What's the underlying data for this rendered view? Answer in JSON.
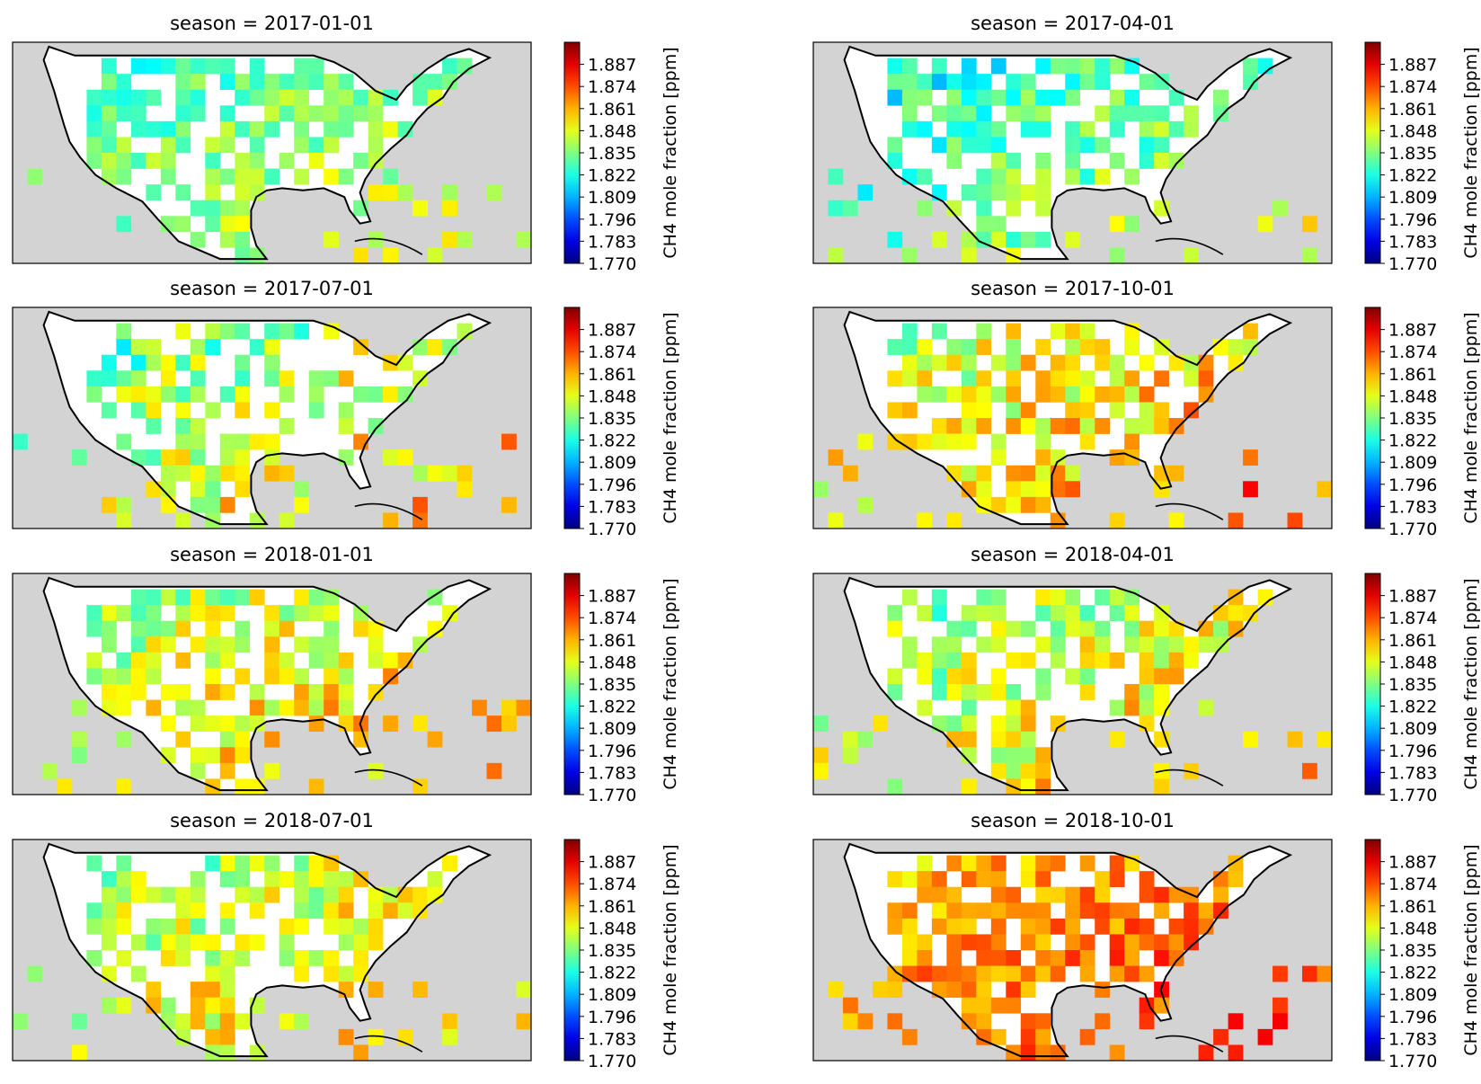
{
  "colors": {
    "ocean": "#d3d3d3",
    "land": "#ffffff",
    "coastline": "#000000",
    "colormap": "jet"
  },
  "chart_data": [
    {
      "type": "heatmap",
      "title": "season = 2017-01-01",
      "colorbar": {
        "label": "CH4 mole fraction [ppm]",
        "min": 1.77,
        "max": 1.9,
        "ticks": [
          "1.770",
          "1.783",
          "1.796",
          "1.809",
          "1.822",
          "1.835",
          "1.848",
          "1.861",
          "1.874",
          "1.887"
        ]
      },
      "values_summary": {
        "typical": 1.835,
        "min": 1.805,
        "max": 1.855
      }
    },
    {
      "type": "heatmap",
      "title": "season = 2017-04-01",
      "colorbar": {
        "label": "CH4 mole fraction [ppm]",
        "min": 1.77,
        "max": 1.9,
        "ticks": [
          "1.770",
          "1.783",
          "1.796",
          "1.809",
          "1.822",
          "1.835",
          "1.848",
          "1.861",
          "1.874",
          "1.887"
        ]
      },
      "values_summary": {
        "typical": 1.83,
        "min": 1.805,
        "max": 1.865
      }
    },
    {
      "type": "heatmap",
      "title": "season = 2017-07-01",
      "colorbar": {
        "label": "CH4 mole fraction [ppm]",
        "min": 1.77,
        "max": 1.9,
        "ticks": [
          "1.770",
          "1.783",
          "1.796",
          "1.809",
          "1.822",
          "1.835",
          "1.848",
          "1.861",
          "1.874",
          "1.887"
        ]
      },
      "values_summary": {
        "typical": 1.842,
        "min": 1.8,
        "max": 1.875
      }
    },
    {
      "type": "heatmap",
      "title": "season = 2017-10-01",
      "colorbar": {
        "label": "CH4 mole fraction [ppm]",
        "min": 1.77,
        "max": 1.9,
        "ticks": [
          "1.770",
          "1.783",
          "1.796",
          "1.809",
          "1.822",
          "1.835",
          "1.848",
          "1.861",
          "1.874",
          "1.887"
        ]
      },
      "values_summary": {
        "typical": 1.852,
        "min": 1.812,
        "max": 1.885
      }
    },
    {
      "type": "heatmap",
      "title": "season = 2018-01-01",
      "colorbar": {
        "label": "CH4 mole fraction [ppm]",
        "min": 1.77,
        "max": 1.9,
        "ticks": [
          "1.770",
          "1.783",
          "1.796",
          "1.809",
          "1.822",
          "1.835",
          "1.848",
          "1.861",
          "1.874",
          "1.887"
        ]
      },
      "values_summary": {
        "typical": 1.848,
        "min": 1.805,
        "max": 1.87
      }
    },
    {
      "type": "heatmap",
      "title": "season = 2018-04-01",
      "colorbar": {
        "label": "CH4 mole fraction [ppm]",
        "min": 1.77,
        "max": 1.9,
        "ticks": [
          "1.770",
          "1.783",
          "1.796",
          "1.809",
          "1.822",
          "1.835",
          "1.848",
          "1.861",
          "1.874",
          "1.887"
        ]
      },
      "values_summary": {
        "typical": 1.845,
        "min": 1.805,
        "max": 1.872
      }
    },
    {
      "type": "heatmap",
      "title": "season = 2018-07-01",
      "colorbar": {
        "label": "CH4 mole fraction [ppm]",
        "min": 1.77,
        "max": 1.9,
        "ticks": [
          "1.770",
          "1.783",
          "1.796",
          "1.809",
          "1.822",
          "1.835",
          "1.848",
          "1.861",
          "1.874",
          "1.887"
        ]
      },
      "values_summary": {
        "typical": 1.846,
        "min": 1.81,
        "max": 1.875
      }
    },
    {
      "type": "heatmap",
      "title": "season = 2018-10-01",
      "colorbar": {
        "label": "CH4 mole fraction [ppm]",
        "min": 1.77,
        "max": 1.9,
        "ticks": [
          "1.770",
          "1.783",
          "1.796",
          "1.809",
          "1.822",
          "1.835",
          "1.848",
          "1.861",
          "1.874",
          "1.887"
        ]
      },
      "values_summary": {
        "typical": 1.866,
        "min": 1.84,
        "max": 1.89
      }
    }
  ]
}
